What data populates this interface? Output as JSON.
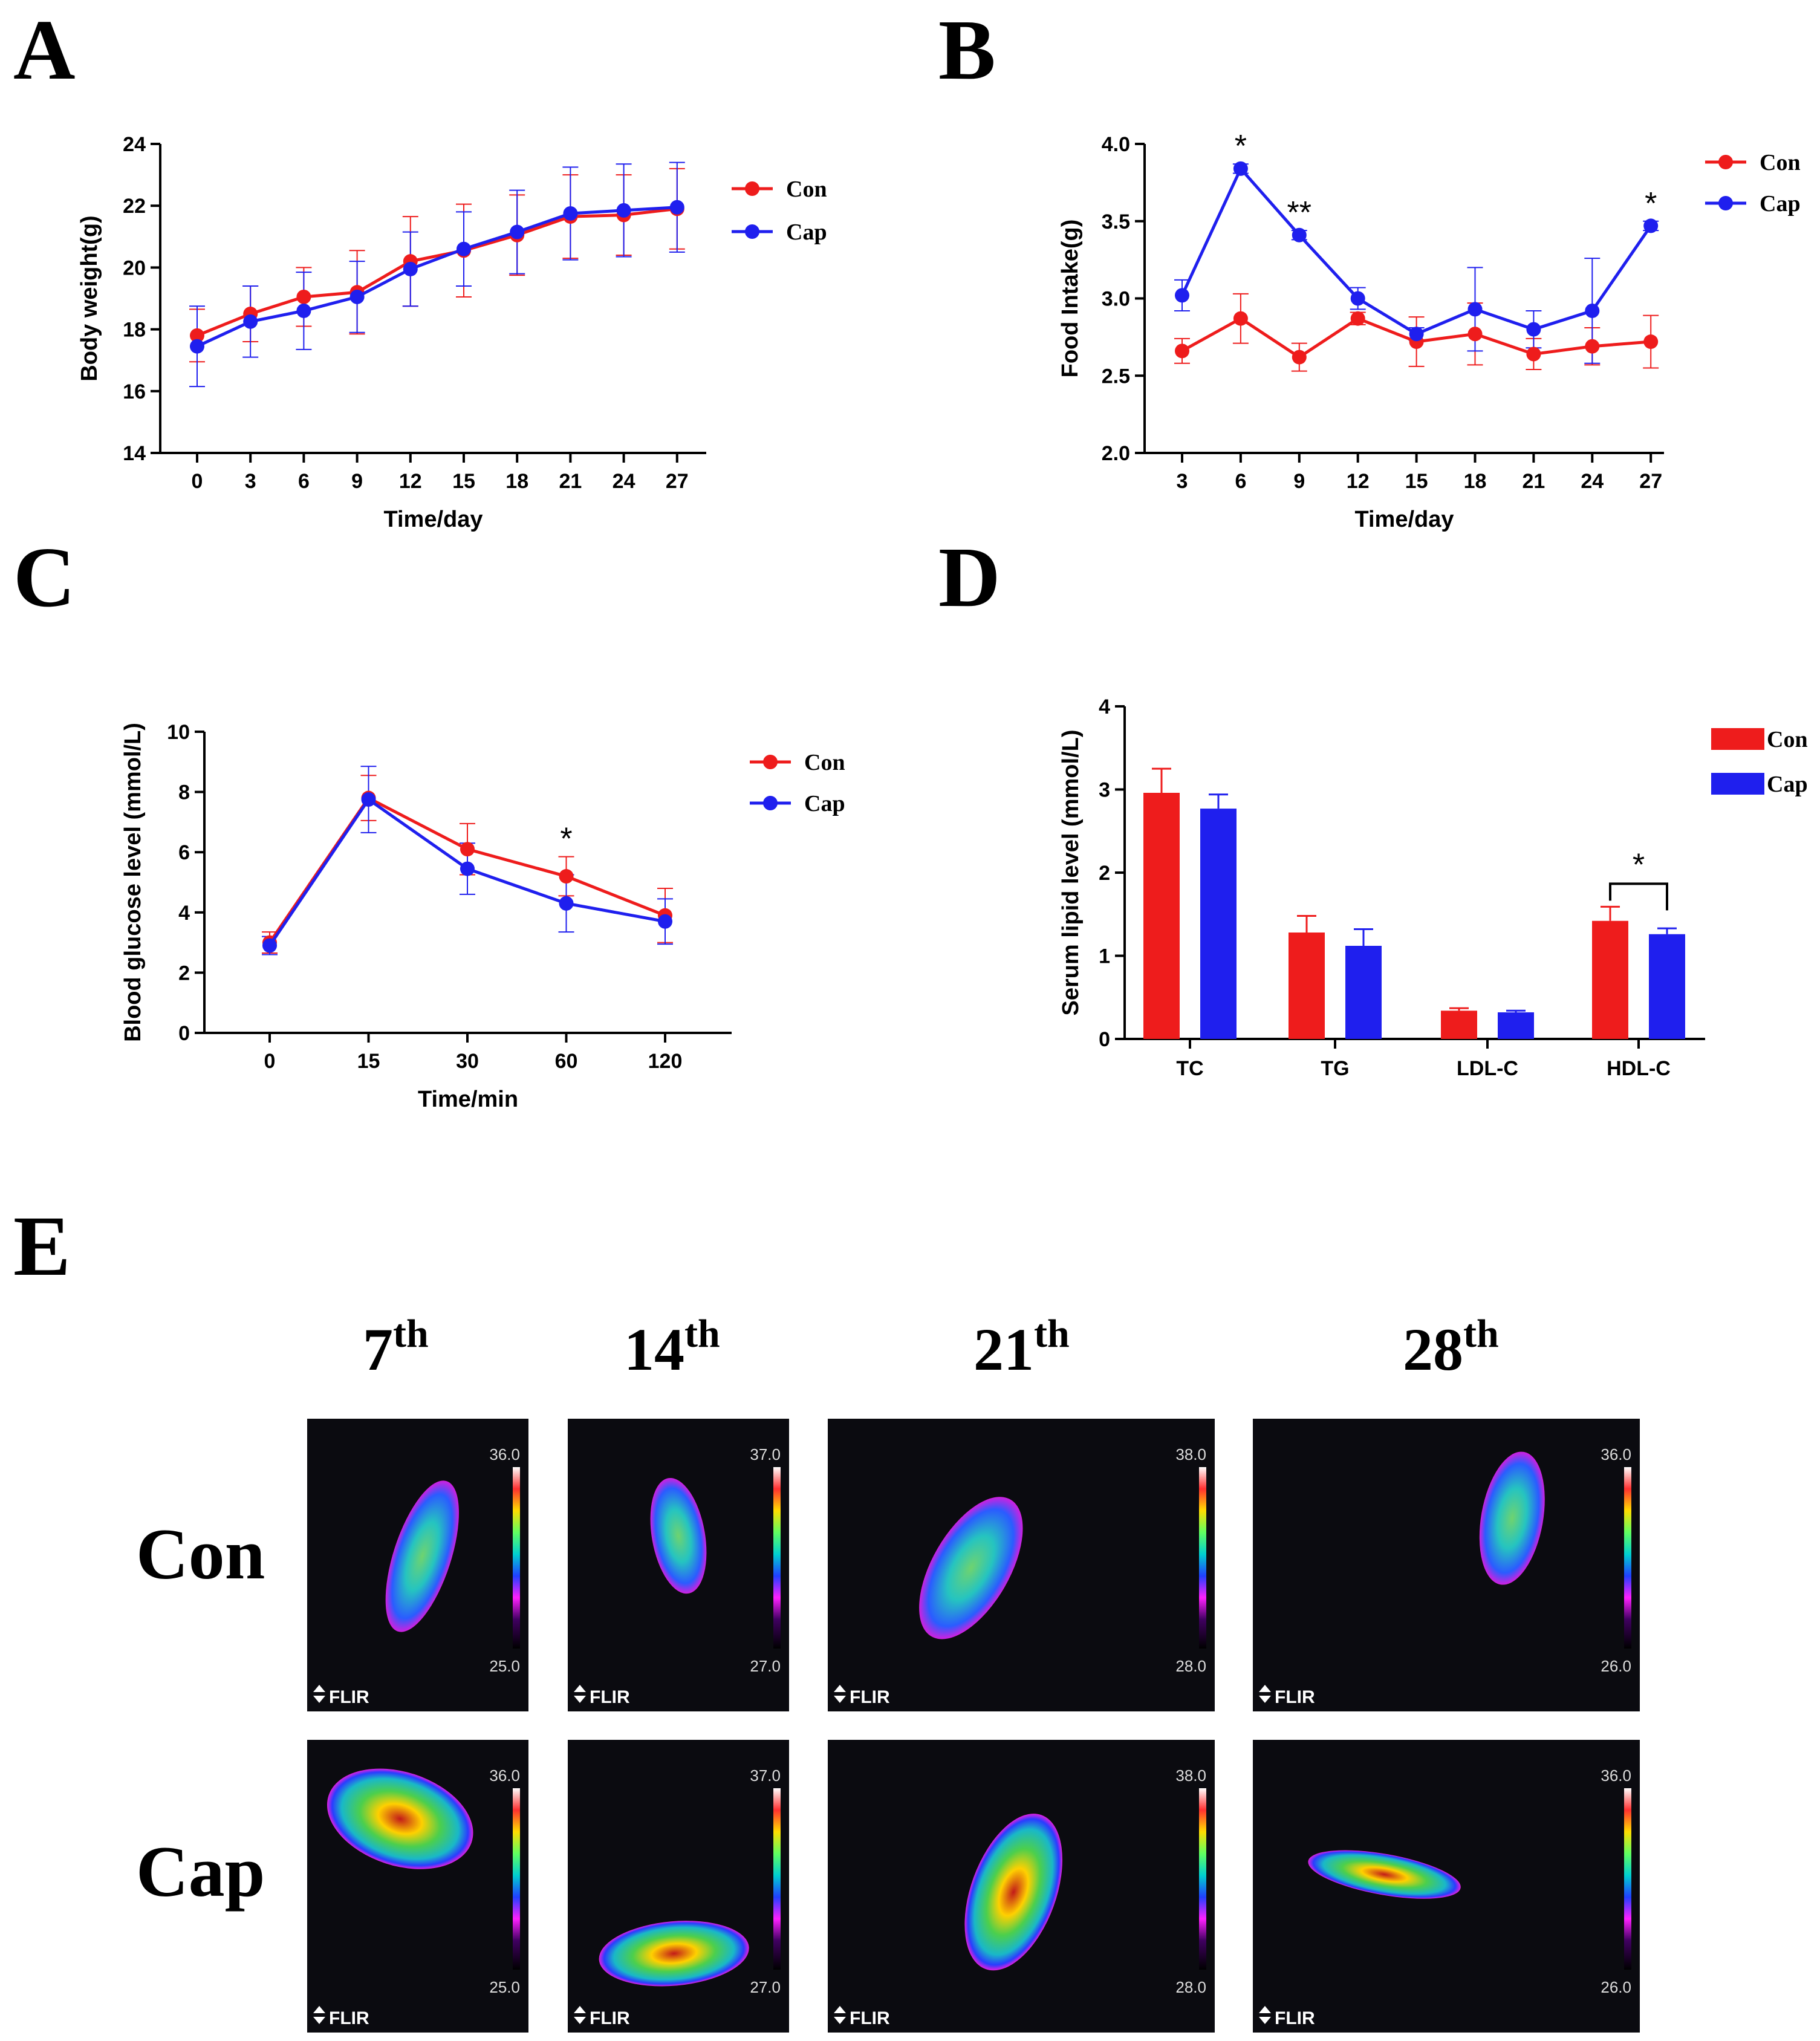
{
  "panels": {
    "A": "A",
    "B": "B",
    "C": "C",
    "D": "D",
    "E": "E"
  },
  "colors": {
    "con": "#ee1c1c",
    "cap": "#1f1fee"
  },
  "chart_data": [
    {
      "id": "A",
      "type": "line",
      "x": [
        0,
        3,
        6,
        9,
        12,
        15,
        18,
        21,
        24,
        27
      ],
      "xlabel": "Time/day",
      "ylabel": "Body weight(g)",
      "ylim": [
        14,
        24
      ],
      "yticks": [
        14,
        16,
        18,
        20,
        22,
        24
      ],
      "legend": "top-right",
      "series": [
        {
          "name": "Con",
          "color": "#ee1c1c",
          "values": [
            17.8,
            18.5,
            19.05,
            19.2,
            20.2,
            20.55,
            21.05,
            21.65,
            21.7,
            21.9
          ],
          "err": [
            0.85,
            0.9,
            0.95,
            1.35,
            1.45,
            1.5,
            1.3,
            1.35,
            1.3,
            1.3
          ]
        },
        {
          "name": "Cap",
          "color": "#1f1fee",
          "values": [
            17.45,
            18.25,
            18.6,
            19.05,
            19.95,
            20.6,
            21.15,
            21.75,
            21.85,
            21.95
          ],
          "err": [
            1.3,
            1.15,
            1.25,
            1.15,
            1.2,
            1.2,
            1.35,
            1.5,
            1.5,
            1.45
          ]
        }
      ]
    },
    {
      "id": "B",
      "type": "line",
      "x": [
        3,
        6,
        9,
        12,
        15,
        18,
        21,
        24,
        27
      ],
      "xlabel": "Time/day",
      "ylabel": "Food Intake(g)",
      "ylim": [
        2.0,
        4.0
      ],
      "yticks": [
        "2.0",
        "2.5",
        "3.0",
        "3.5",
        "4.0"
      ],
      "legend": "top-right",
      "annotations": [
        {
          "x": 6,
          "text": "*"
        },
        {
          "x": 9,
          "text": "**"
        },
        {
          "x": 27,
          "text": "*"
        }
      ],
      "series": [
        {
          "name": "Con",
          "color": "#ee1c1c",
          "values": [
            2.66,
            2.87,
            2.62,
            2.87,
            2.72,
            2.77,
            2.64,
            2.69,
            2.72
          ],
          "err": [
            0.08,
            0.16,
            0.09,
            0.04,
            0.16,
            0.2,
            0.1,
            0.12,
            0.17
          ]
        },
        {
          "name": "Cap",
          "color": "#1f1fee",
          "values": [
            3.02,
            3.84,
            3.41,
            3.0,
            2.77,
            2.93,
            2.8,
            2.92,
            3.47
          ],
          "err": [
            0.1,
            0.03,
            0.03,
            0.07,
            0.04,
            0.27,
            0.12,
            0.34,
            0.03
          ]
        }
      ]
    },
    {
      "id": "C",
      "type": "line",
      "categories": [
        "0",
        "15",
        "30",
        "60",
        "120"
      ],
      "xlabel": "Time/min",
      "ylabel": "Blood glucose level (mmol/L)",
      "ylim": [
        0,
        10
      ],
      "yticks": [
        0,
        2,
        4,
        6,
        8,
        10
      ],
      "legend": "top-right",
      "annotations": [
        {
          "category": "60",
          "text": "*"
        }
      ],
      "series": [
        {
          "name": "Con",
          "color": "#ee1c1c",
          "values": [
            3.0,
            7.8,
            6.1,
            5.2,
            3.9
          ],
          "err": [
            0.35,
            0.75,
            0.85,
            0.65,
            0.9
          ]
        },
        {
          "name": "Cap",
          "color": "#1f1fee",
          "values": [
            2.9,
            7.75,
            5.45,
            4.3,
            3.7
          ],
          "err": [
            0.3,
            1.1,
            0.85,
            0.95,
            0.75
          ]
        }
      ]
    },
    {
      "id": "D",
      "type": "bar",
      "categories": [
        "TC",
        "TG",
        "LDL-C",
        "HDL-C"
      ],
      "xlabel": "",
      "ylabel": "Serum lipid level (mmol/L)",
      "ylim": [
        0,
        4
      ],
      "yticks": [
        0,
        1,
        2,
        3,
        4
      ],
      "legend": "top-right",
      "annotations": [
        {
          "category": "HDL-C",
          "text": "*",
          "bracket": true
        }
      ],
      "series": [
        {
          "name": "Con",
          "color": "#ee1c1c",
          "values": [
            2.96,
            1.28,
            0.34,
            1.42
          ],
          "err": [
            0.29,
            0.2,
            0.03,
            0.17
          ]
        },
        {
          "name": "Cap",
          "color": "#1f1fee",
          "values": [
            2.77,
            1.12,
            0.32,
            1.26
          ],
          "err": [
            0.17,
            0.2,
            0.02,
            0.07
          ]
        }
      ]
    }
  ],
  "thermal": {
    "days": [
      {
        "num": "7",
        "sup": "th"
      },
      {
        "num": "14",
        "sup": "th"
      },
      {
        "num": "21",
        "sup": "th"
      },
      {
        "num": "28",
        "sup": "th"
      }
    ],
    "rows": [
      "Con",
      "Cap"
    ],
    "scales": [
      {
        "max": "36.0",
        "min": "25.0"
      },
      {
        "max": "37.0",
        "min": "27.0"
      },
      {
        "max": "38.0",
        "min": "28.0"
      },
      {
        "max": "36.0",
        "min": "26.0"
      }
    ],
    "brand": "FLIR"
  }
}
